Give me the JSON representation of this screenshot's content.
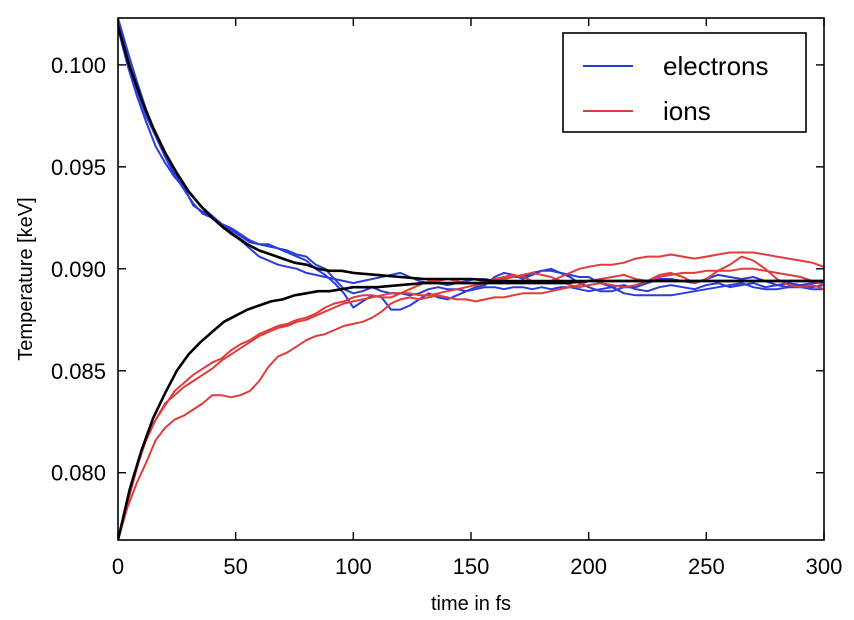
{
  "chart_data": {
    "type": "line",
    "title": "",
    "xlabel": "time in fs",
    "ylabel": "Temperature [keV]",
    "xlim": [
      0,
      300
    ],
    "ylim": [
      0.0767,
      0.1023
    ],
    "xticks": [
      0,
      50,
      100,
      150,
      200,
      250,
      300
    ],
    "xtick_labels": [
      "0",
      "50",
      "100",
      "150",
      "200",
      "250",
      "300"
    ],
    "yticks": [
      0.08,
      0.085,
      0.09,
      0.095,
      0.1
    ],
    "ytick_labels": [
      "0.080",
      "0.085",
      "0.090",
      "0.095",
      "0.100"
    ],
    "grid": false,
    "legend": {
      "position": "top-right",
      "entries": [
        {
          "label": "electrons",
          "color": "#2a3cdc"
        },
        {
          "label": "ions",
          "color": "#e03c3c"
        }
      ]
    },
    "colors": {
      "electrons": "#2a3cdc",
      "ions": "#e03c3c",
      "fit": "#000000"
    },
    "series": [
      {
        "group": "electrons",
        "x": [
          0,
          4,
          8,
          12,
          16,
          20,
          24,
          28,
          32,
          36,
          40,
          44,
          48,
          52,
          56,
          60,
          64,
          68,
          72,
          76,
          80,
          84,
          88,
          92,
          96,
          100,
          104,
          108,
          112,
          116,
          120,
          124,
          128,
          132,
          136,
          140,
          144,
          148,
          152,
          156,
          160,
          164,
          168,
          172,
          176,
          180,
          184,
          188,
          192,
          196,
          200,
          205,
          210,
          215,
          220,
          225,
          230,
          235,
          240,
          245,
          250,
          255,
          260,
          265,
          270,
          275,
          280,
          285,
          290,
          295,
          300
        ],
        "y": [
          0.1023,
          0.1007,
          0.0992,
          0.0978,
          0.0966,
          0.0955,
          0.0946,
          0.0939,
          0.0932,
          0.0927,
          0.0925,
          0.0922,
          0.092,
          0.0917,
          0.0914,
          0.0912,
          0.0912,
          0.091,
          0.0909,
          0.0907,
          0.0906,
          0.0902,
          0.09,
          0.0895,
          0.089,
          0.0888,
          0.0889,
          0.0891,
          0.0889,
          0.0888,
          0.0888,
          0.0887,
          0.0888,
          0.089,
          0.0891,
          0.089,
          0.089,
          0.0889,
          0.089,
          0.0891,
          0.0891,
          0.089,
          0.0891,
          0.0891,
          0.089,
          0.0891,
          0.089,
          0.0891,
          0.0891,
          0.089,
          0.0889,
          0.089,
          0.0891,
          0.0892,
          0.089,
          0.0889,
          0.0891,
          0.0892,
          0.0891,
          0.089,
          0.0892,
          0.0893,
          0.0891,
          0.0892,
          0.0893,
          0.0891,
          0.0892,
          0.0893,
          0.0892,
          0.0893,
          0.0893
        ]
      },
      {
        "group": "electrons",
        "x": [
          0,
          4,
          8,
          12,
          16,
          20,
          24,
          28,
          32,
          36,
          40,
          44,
          48,
          52,
          56,
          60,
          64,
          68,
          72,
          76,
          80,
          84,
          88,
          92,
          96,
          100,
          104,
          108,
          112,
          116,
          120,
          124,
          128,
          132,
          136,
          140,
          144,
          148,
          152,
          156,
          160,
          164,
          168,
          172,
          176,
          180,
          184,
          188,
          192,
          196,
          200,
          205,
          210,
          215,
          220,
          225,
          230,
          235,
          240,
          245,
          250,
          255,
          260,
          265,
          270,
          275,
          280,
          285,
          290,
          295,
          300
        ],
        "y": [
          0.1018,
          0.1,
          0.0985,
          0.0972,
          0.096,
          0.0952,
          0.0945,
          0.094,
          0.0931,
          0.0928,
          0.0926,
          0.0922,
          0.0919,
          0.0916,
          0.0913,
          0.0912,
          0.0911,
          0.091,
          0.0908,
          0.0906,
          0.0904,
          0.09,
          0.0897,
          0.0893,
          0.0888,
          0.0881,
          0.0884,
          0.0887,
          0.0886,
          0.088,
          0.088,
          0.0882,
          0.0885,
          0.0888,
          0.0886,
          0.0885,
          0.0887,
          0.0889,
          0.0891,
          0.0892,
          0.0896,
          0.0898,
          0.0897,
          0.0895,
          0.0897,
          0.0899,
          0.09,
          0.0898,
          0.0896,
          0.0893,
          0.0891,
          0.0889,
          0.0889,
          0.0891,
          0.0891,
          0.0893,
          0.0895,
          0.0895,
          0.0894,
          0.0893,
          0.0895,
          0.0897,
          0.0896,
          0.0895,
          0.0896,
          0.0894,
          0.0892,
          0.0891,
          0.0892,
          0.0891,
          0.0892
        ]
      },
      {
        "group": "electrons",
        "x": [
          0,
          4,
          8,
          12,
          16,
          20,
          24,
          28,
          32,
          36,
          40,
          44,
          48,
          52,
          56,
          60,
          64,
          68,
          72,
          76,
          80,
          84,
          88,
          92,
          96,
          100,
          104,
          108,
          112,
          116,
          120,
          124,
          128,
          132,
          136,
          140,
          144,
          148,
          152,
          156,
          160,
          164,
          168,
          172,
          176,
          180,
          184,
          188,
          192,
          196,
          200,
          205,
          210,
          215,
          220,
          225,
          230,
          235,
          240,
          245,
          250,
          255,
          260,
          265,
          270,
          275,
          280,
          285,
          290,
          295,
          300
        ],
        "y": [
          0.102,
          0.1003,
          0.0988,
          0.0975,
          0.0965,
          0.0955,
          0.0947,
          0.094,
          0.0935,
          0.093,
          0.0926,
          0.0921,
          0.0917,
          0.0914,
          0.091,
          0.0906,
          0.0904,
          0.0902,
          0.0901,
          0.09,
          0.0898,
          0.0897,
          0.0896,
          0.0895,
          0.0894,
          0.0893,
          0.0894,
          0.0895,
          0.0896,
          0.0897,
          0.0898,
          0.0896,
          0.0894,
          0.0893,
          0.0893,
          0.0892,
          0.0893,
          0.0894,
          0.0895,
          0.0895,
          0.0894,
          0.0895,
          0.0896,
          0.0896,
          0.0898,
          0.0899,
          0.0899,
          0.0898,
          0.0897,
          0.0896,
          0.0896,
          0.0893,
          0.0891,
          0.0888,
          0.0887,
          0.0887,
          0.0887,
          0.0887,
          0.0888,
          0.0889,
          0.089,
          0.0891,
          0.0892,
          0.0893,
          0.0891,
          0.089,
          0.089,
          0.0891,
          0.0891,
          0.089,
          0.089
        ]
      },
      {
        "group": "ions",
        "x": [
          0,
          4,
          8,
          12,
          16,
          20,
          24,
          28,
          32,
          36,
          40,
          44,
          48,
          52,
          56,
          60,
          64,
          68,
          72,
          76,
          80,
          84,
          88,
          92,
          96,
          100,
          104,
          108,
          112,
          116,
          120,
          124,
          128,
          132,
          136,
          140,
          144,
          148,
          152,
          156,
          160,
          164,
          168,
          172,
          176,
          180,
          184,
          188,
          192,
          196,
          200,
          205,
          210,
          215,
          220,
          225,
          230,
          235,
          240,
          245,
          250,
          255,
          260,
          265,
          270,
          275,
          280,
          285,
          290,
          295,
          300
        ],
        "y": [
          0.0767,
          0.0785,
          0.0802,
          0.0817,
          0.0826,
          0.0834,
          0.0838,
          0.0842,
          0.0845,
          0.0848,
          0.0851,
          0.0855,
          0.0858,
          0.0861,
          0.0864,
          0.0867,
          0.0869,
          0.0871,
          0.0872,
          0.0874,
          0.0875,
          0.0877,
          0.0879,
          0.0881,
          0.0883,
          0.0884,
          0.0885,
          0.0886,
          0.0887,
          0.0888,
          0.0888,
          0.0888,
          0.0887,
          0.0887,
          0.0888,
          0.0889,
          0.089,
          0.0891,
          0.0892,
          0.0893,
          0.0894,
          0.0895,
          0.0896,
          0.0897,
          0.0898,
          0.0897,
          0.0896,
          0.0894,
          0.0892,
          0.0891,
          0.0892,
          0.0893,
          0.0892,
          0.0891,
          0.0892,
          0.0894,
          0.0897,
          0.0898,
          0.0896,
          0.0893,
          0.0895,
          0.0899,
          0.0902,
          0.0906,
          0.0904,
          0.09,
          0.0895,
          0.0892,
          0.0891,
          0.0892,
          0.089
        ]
      },
      {
        "group": "ions",
        "x": [
          0,
          4,
          8,
          12,
          16,
          20,
          24,
          28,
          32,
          36,
          40,
          44,
          48,
          52,
          56,
          60,
          64,
          68,
          72,
          76,
          80,
          84,
          88,
          92,
          96,
          100,
          104,
          108,
          112,
          116,
          120,
          124,
          128,
          132,
          136,
          140,
          144,
          148,
          152,
          156,
          160,
          164,
          168,
          172,
          176,
          180,
          184,
          188,
          192,
          196,
          200,
          205,
          210,
          215,
          220,
          225,
          230,
          235,
          240,
          245,
          250,
          255,
          260,
          265,
          270,
          275,
          280,
          285,
          290,
          295,
          300
        ],
        "y": [
          0.0767,
          0.0783,
          0.0795,
          0.0805,
          0.0816,
          0.0822,
          0.0826,
          0.0828,
          0.0831,
          0.0834,
          0.0838,
          0.0838,
          0.0837,
          0.0838,
          0.084,
          0.0845,
          0.0852,
          0.0857,
          0.0859,
          0.0862,
          0.0865,
          0.0867,
          0.0868,
          0.087,
          0.0872,
          0.0873,
          0.0874,
          0.0876,
          0.0879,
          0.0883,
          0.0885,
          0.0886,
          0.0885,
          0.0886,
          0.0887,
          0.0886,
          0.0885,
          0.0885,
          0.0884,
          0.0885,
          0.0886,
          0.0886,
          0.0887,
          0.0888,
          0.0888,
          0.0888,
          0.0889,
          0.089,
          0.0891,
          0.0892,
          0.0894,
          0.0895,
          0.0896,
          0.0897,
          0.0895,
          0.0894,
          0.0896,
          0.0897,
          0.0898,
          0.0898,
          0.0899,
          0.0899,
          0.0899,
          0.09,
          0.09,
          0.0899,
          0.0898,
          0.0897,
          0.0896,
          0.0894,
          0.0892
        ]
      },
      {
        "group": "ions",
        "x": [
          0,
          4,
          8,
          12,
          16,
          20,
          24,
          28,
          32,
          36,
          40,
          44,
          48,
          52,
          56,
          60,
          64,
          68,
          72,
          76,
          80,
          84,
          88,
          92,
          96,
          100,
          104,
          108,
          112,
          116,
          120,
          124,
          128,
          132,
          136,
          140,
          144,
          148,
          152,
          156,
          160,
          164,
          168,
          172,
          176,
          180,
          184,
          188,
          192,
          196,
          200,
          205,
          210,
          215,
          220,
          225,
          230,
          235,
          240,
          245,
          250,
          255,
          260,
          265,
          270,
          275,
          280,
          285,
          290,
          295,
          300
        ],
        "y": [
          0.0767,
          0.0786,
          0.0803,
          0.0816,
          0.0826,
          0.0833,
          0.084,
          0.0844,
          0.0848,
          0.0851,
          0.0854,
          0.0856,
          0.086,
          0.0863,
          0.0865,
          0.0868,
          0.087,
          0.0872,
          0.0873,
          0.0875,
          0.0876,
          0.0878,
          0.0881,
          0.0883,
          0.0884,
          0.0886,
          0.0887,
          0.0887,
          0.0886,
          0.0886,
          0.0888,
          0.089,
          0.0892,
          0.0894,
          0.0894,
          0.0895,
          0.0894,
          0.0893,
          0.0893,
          0.0894,
          0.0895,
          0.0896,
          0.0897,
          0.0896,
          0.0894,
          0.0893,
          0.0894,
          0.0896,
          0.0898,
          0.09,
          0.0901,
          0.0902,
          0.0902,
          0.0903,
          0.0905,
          0.0906,
          0.0906,
          0.0907,
          0.0906,
          0.0905,
          0.0906,
          0.0907,
          0.0908,
          0.0908,
          0.0908,
          0.0907,
          0.0906,
          0.0905,
          0.0904,
          0.0903,
          0.0901
        ]
      },
      {
        "group": "fit",
        "x": [
          0,
          5,
          10,
          15,
          20,
          25,
          30,
          35,
          40,
          45,
          50,
          55,
          60,
          65,
          70,
          75,
          80,
          85,
          90,
          95,
          100,
          110,
          120,
          130,
          140,
          150,
          160,
          170,
          180,
          190,
          200,
          220,
          240,
          260,
          280,
          300
        ],
        "y": [
          0.1019,
          0.0999,
          0.0983,
          0.0969,
          0.0957,
          0.0947,
          0.0938,
          0.0931,
          0.0925,
          0.092,
          0.0916,
          0.0912,
          0.0909,
          0.0907,
          0.0905,
          0.0903,
          0.0902,
          0.09,
          0.0899,
          0.0899,
          0.0898,
          0.0897,
          0.0896,
          0.0895,
          0.0895,
          0.0895,
          0.0894,
          0.0894,
          0.0894,
          0.0894,
          0.0894,
          0.0894,
          0.0894,
          0.0894,
          0.0894,
          0.0894
        ]
      },
      {
        "group": "fit",
        "x": [
          0,
          5,
          10,
          15,
          20,
          25,
          30,
          35,
          40,
          45,
          50,
          55,
          60,
          65,
          70,
          75,
          80,
          85,
          90,
          95,
          100,
          110,
          120,
          130,
          140,
          150,
          160,
          170,
          180,
          190,
          200,
          220,
          240,
          260,
          280,
          300
        ],
        "y": [
          0.0767,
          0.0792,
          0.0811,
          0.0827,
          0.0839,
          0.085,
          0.0858,
          0.0864,
          0.0869,
          0.0874,
          0.0877,
          0.088,
          0.0882,
          0.0884,
          0.0885,
          0.0887,
          0.0888,
          0.0889,
          0.0889,
          0.089,
          0.0891,
          0.0891,
          0.0892,
          0.0893,
          0.0893,
          0.0893,
          0.0893,
          0.0893,
          0.0893,
          0.0893,
          0.0894,
          0.0894,
          0.0894,
          0.0894,
          0.0894,
          0.0894
        ]
      }
    ]
  }
}
